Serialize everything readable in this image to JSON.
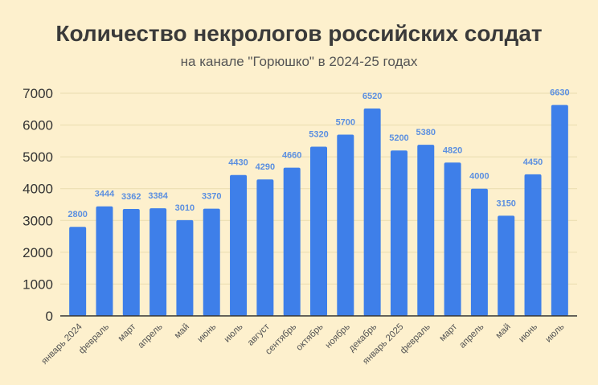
{
  "chart_data": {
    "type": "bar",
    "title": "Количество некрологов российских солдат",
    "subtitle": "на канале \"Горюшко\" в 2024-25 годах",
    "xlabel": "",
    "ylabel": "",
    "ylim": [
      0,
      7000
    ],
    "yticks": [
      0,
      1000,
      2000,
      3000,
      4000,
      5000,
      6000,
      7000
    ],
    "grid": true,
    "categories": [
      "январь 2024",
      "февраль",
      "март",
      "апрель",
      "май",
      "июнь",
      "июль",
      "август",
      "сентябрь",
      "октябрь",
      "ноябрь",
      "декабрь",
      "январь 2025",
      "февраль",
      "март",
      "апрель",
      "май",
      "июнь",
      "июль"
    ],
    "values": [
      2800,
      3444,
      3362,
      3384,
      3010,
      3370,
      4430,
      4290,
      4660,
      5320,
      5700,
      6520,
      5200,
      5380,
      4820,
      4000,
      3150,
      4450,
      6630
    ],
    "colors": {
      "bar": "#3e7fe9",
      "label": "#5b8fe0",
      "grid": "#e9dcae",
      "axis": "#333333",
      "background": "#fdf0cd"
    }
  }
}
